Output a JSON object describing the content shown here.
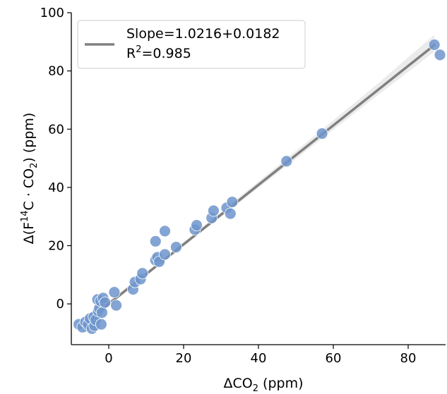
{
  "chart_data": {
    "type": "scatter",
    "xlabel": "ΔCO",
    "xlabel_sub": "2",
    "xlabel_unit": " (ppm)",
    "ylabel": {
      "p1": "Δ(F",
      "sup": "14",
      "p2": "C · CO",
      "sub": "2",
      "p3": ") (ppm)"
    },
    "xlim": [
      -10,
      90
    ],
    "ylim": [
      -14,
      100
    ],
    "x_ticks": [
      0,
      20,
      40,
      60,
      80
    ],
    "y_ticks": [
      0,
      20,
      40,
      60,
      80,
      100
    ],
    "grid": false,
    "legend_position": "top-left",
    "legend": {
      "line1": "Slope=1.0216+0.0182",
      "line2_pre": "R",
      "line2_sup": "2",
      "line2_post": "=0.985"
    },
    "colors": {
      "points": "#6f95cc",
      "point_edge": "#ffffff",
      "fit_line": "#808080",
      "confidence_band": "#e6e6e6"
    },
    "fit": {
      "slope": 1.0216,
      "intercept": 0,
      "x_range": [
        -7.5,
        87
      ]
    },
    "confidence_band": {
      "x": [
        -7.5,
        10,
        30,
        50,
        70,
        87
      ],
      "lower": [
        -7.8,
        9.9,
        29.9,
        49.8,
        69.8,
        86.6
      ],
      "upper": [
        -6.3,
        10.8,
        31.6,
        52.5,
        73.6,
        92.4
      ]
    },
    "points": [
      {
        "x": -8.0,
        "y": -7.0
      },
      {
        "x": -7.0,
        "y": -8.0
      },
      {
        "x": -6.2,
        "y": -6.2
      },
      {
        "x": -5.5,
        "y": -7.0
      },
      {
        "x": -5.0,
        "y": -5.0
      },
      {
        "x": -4.5,
        "y": -8.5
      },
      {
        "x": -4.0,
        "y": -4.5
      },
      {
        "x": -3.8,
        "y": -7.5
      },
      {
        "x": -3.5,
        "y": -5.5
      },
      {
        "x": -3.0,
        "y": 1.5
      },
      {
        "x": -2.8,
        "y": -2.5
      },
      {
        "x": -2.5,
        "y": -1.5
      },
      {
        "x": -2.2,
        "y": 1.0
      },
      {
        "x": -2.0,
        "y": -7.0
      },
      {
        "x": -1.8,
        "y": -3.0
      },
      {
        "x": -1.5,
        "y": 2.0
      },
      {
        "x": -1.0,
        "y": 0.5
      },
      {
        "x": 1.5,
        "y": 4.0
      },
      {
        "x": 2.0,
        "y": -0.5
      },
      {
        "x": 6.5,
        "y": 5.0
      },
      {
        "x": 7.0,
        "y": 7.5
      },
      {
        "x": 8.5,
        "y": 8.5
      },
      {
        "x": 9.0,
        "y": 10.5
      },
      {
        "x": 12.5,
        "y": 15.0
      },
      {
        "x": 12.5,
        "y": 21.5
      },
      {
        "x": 13.0,
        "y": 16.0
      },
      {
        "x": 13.5,
        "y": 14.5
      },
      {
        "x": 15.0,
        "y": 17.0
      },
      {
        "x": 15.0,
        "y": 25.0
      },
      {
        "x": 18.0,
        "y": 19.5
      },
      {
        "x": 23.0,
        "y": 25.5
      },
      {
        "x": 23.5,
        "y": 27.0
      },
      {
        "x": 27.5,
        "y": 29.5
      },
      {
        "x": 28.0,
        "y": 32.0
      },
      {
        "x": 31.5,
        "y": 33.0
      },
      {
        "x": 32.5,
        "y": 31.0
      },
      {
        "x": 33.0,
        "y": 35.0
      },
      {
        "x": 47.5,
        "y": 49.0
      },
      {
        "x": 57.0,
        "y": 58.5
      },
      {
        "x": 87.0,
        "y": 89.0
      },
      {
        "x": 88.5,
        "y": 85.5
      }
    ]
  }
}
